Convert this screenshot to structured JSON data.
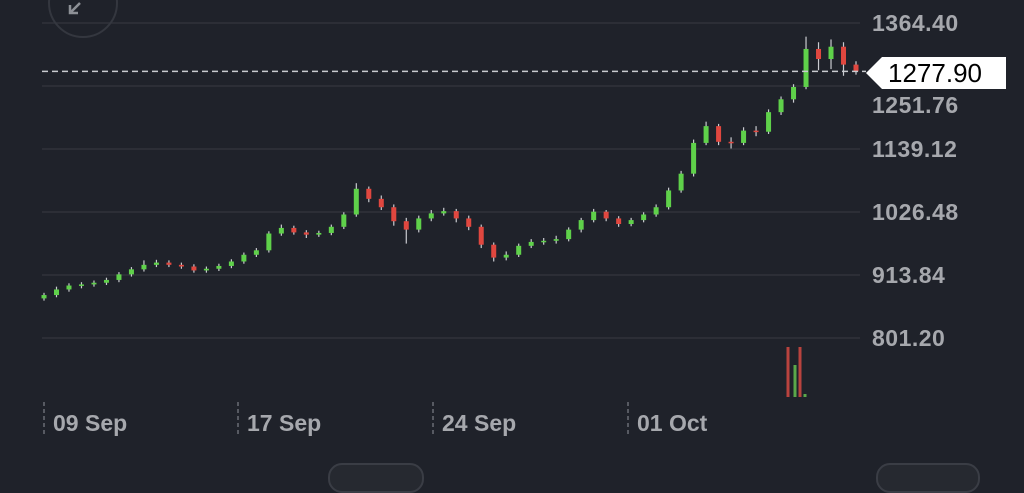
{
  "chart_data": {
    "type": "candlestick",
    "y_ticks": [
      "1364.40",
      "1251.76",
      "1139.12",
      "1026.48",
      "913.84",
      "801.20"
    ],
    "y_tick_values": [
      1364.4,
      1251.76,
      1139.12,
      1026.48,
      913.84,
      801.2
    ],
    "ylim": [
      760,
      1385
    ],
    "x_ticks": [
      "09 Sep",
      "17 Sep",
      "24 Sep",
      "01 Oct"
    ],
    "grid": true,
    "current_price": "1277.90",
    "current_price_value": 1277.9,
    "colors": {
      "up": "#5fd14a",
      "down": "#e0473f",
      "background": "#1f222a",
      "grid": "#30333b",
      "text": "#a6a8ad"
    },
    "candles": [
      [
        872,
        882,
        868,
        878
      ],
      [
        878,
        893,
        874,
        888
      ],
      [
        888,
        899,
        884,
        895
      ],
      [
        895,
        901,
        890,
        897
      ],
      [
        897,
        904,
        893,
        900
      ],
      [
        900,
        909,
        896,
        905
      ],
      [
        905,
        919,
        901,
        915
      ],
      [
        915,
        928,
        911,
        924
      ],
      [
        924,
        940,
        920,
        932
      ],
      [
        932,
        941,
        928,
        936
      ],
      [
        936,
        940,
        928,
        932
      ],
      [
        932,
        936,
        925,
        929
      ],
      [
        929,
        933,
        918,
        922
      ],
      [
        922,
        929,
        918,
        925
      ],
      [
        925,
        934,
        921,
        930
      ],
      [
        930,
        942,
        926,
        938
      ],
      [
        938,
        954,
        934,
        950
      ],
      [
        950,
        962,
        946,
        958
      ],
      [
        958,
        992,
        954,
        988
      ],
      [
        988,
        1004,
        984,
        998
      ],
      [
        998,
        1002,
        986,
        990
      ],
      [
        990,
        994,
        980,
        986
      ],
      [
        986,
        993,
        982,
        989
      ],
      [
        989,
        1004,
        985,
        1000
      ],
      [
        1000,
        1026,
        996,
        1022
      ],
      [
        1022,
        1078,
        1018,
        1068
      ],
      [
        1068,
        1072,
        1044,
        1050
      ],
      [
        1050,
        1056,
        1030,
        1035
      ],
      [
        1035,
        1040,
        1002,
        1010
      ],
      [
        1010,
        1016,
        970,
        995
      ],
      [
        995,
        1020,
        990,
        1015
      ],
      [
        1015,
        1030,
        1010,
        1024
      ],
      [
        1024,
        1034,
        1020,
        1028
      ],
      [
        1028,
        1032,
        1008,
        1015
      ],
      [
        1015,
        1020,
        994,
        1000
      ],
      [
        1000,
        1004,
        962,
        968
      ],
      [
        968,
        972,
        938,
        945
      ],
      [
        945,
        956,
        940,
        950
      ],
      [
        950,
        970,
        946,
        966
      ],
      [
        966,
        978,
        962,
        973
      ],
      [
        973,
        980,
        968,
        975
      ],
      [
        975,
        984,
        970,
        978
      ],
      [
        978,
        999,
        974,
        995
      ],
      [
        995,
        1016,
        990,
        1012
      ],
      [
        1012,
        1032,
        1008,
        1027
      ],
      [
        1027,
        1030,
        1010,
        1015
      ],
      [
        1015,
        1019,
        1000,
        1005
      ],
      [
        1005,
        1016,
        1001,
        1012
      ],
      [
        1012,
        1026,
        1008,
        1022
      ],
      [
        1022,
        1040,
        1018,
        1035
      ],
      [
        1035,
        1070,
        1031,
        1065
      ],
      [
        1065,
        1100,
        1061,
        1095
      ],
      [
        1095,
        1156,
        1090,
        1150
      ],
      [
        1150,
        1188,
        1146,
        1180
      ],
      [
        1180,
        1184,
        1146,
        1152
      ],
      [
        1152,
        1160,
        1140,
        1150
      ],
      [
        1150,
        1178,
        1146,
        1172
      ],
      [
        1172,
        1180,
        1162,
        1170
      ],
      [
        1170,
        1210,
        1166,
        1205
      ],
      [
        1205,
        1233,
        1200,
        1228
      ],
      [
        1228,
        1255,
        1222,
        1250
      ],
      [
        1250,
        1340,
        1246,
        1318
      ],
      [
        1318,
        1330,
        1280,
        1300
      ],
      [
        1300,
        1335,
        1282,
        1322
      ],
      [
        1322,
        1330,
        1270,
        1290
      ],
      [
        1290,
        1296,
        1272,
        1277.9
      ]
    ],
    "volume_bars": [
      {
        "dir": "down",
        "value": 50
      },
      {
        "dir": "up",
        "value": 32
      },
      {
        "dir": "down",
        "value": 50
      },
      {
        "dir": "up",
        "value": 3
      }
    ]
  },
  "controls": {
    "collapse_icon": "arrow-down-left-icon"
  }
}
